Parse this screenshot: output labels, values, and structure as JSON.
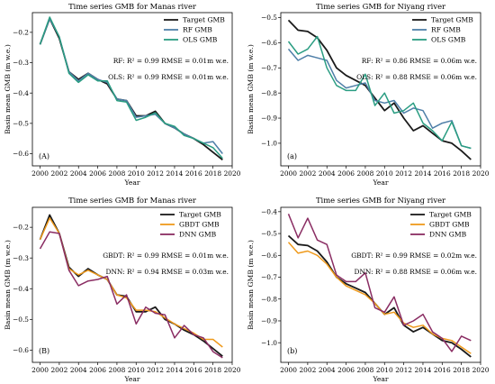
{
  "chart_data": [
    {
      "type": "line",
      "title": "Time series GMB for Manas river",
      "panel_label": "(A)",
      "xlabel": "Year",
      "ylabel": "Basin mean GMB (m w.e.)",
      "xlim": [
        1999.2,
        2020
      ],
      "ylim": [
        -0.64,
        -0.135
      ],
      "xticks": [
        "2000",
        "2002",
        "2004",
        "2006",
        "2008",
        "2010",
        "2012",
        "2014",
        "2016",
        "2018",
        "2020"
      ],
      "yticks": [
        "-0.6",
        "-0.5",
        "-0.4",
        "-0.3",
        "-0.2"
      ],
      "grid": false,
      "legend_position": "top-right",
      "x": [
        2000,
        2001,
        2002,
        2003,
        2004,
        2005,
        2006,
        2007,
        2008,
        2009,
        2010,
        2011,
        2012,
        2013,
        2014,
        2015,
        2016,
        2017,
        2018,
        2019
      ],
      "series": [
        {
          "name": "Target GMB",
          "color": "#1a1a1a",
          "values": [
            -0.24,
            -0.155,
            -0.22,
            -0.33,
            -0.355,
            -0.335,
            -0.355,
            -0.37,
            -0.42,
            -0.425,
            -0.475,
            -0.475,
            -0.46,
            -0.5,
            -0.515,
            -0.535,
            -0.55,
            -0.57,
            -0.595,
            -0.62
          ]
        },
        {
          "name": "RF GMB",
          "color": "#4f7fa8",
          "values": [
            -0.24,
            -0.155,
            -0.215,
            -0.33,
            -0.36,
            -0.335,
            -0.355,
            -0.365,
            -0.42,
            -0.425,
            -0.48,
            -0.475,
            -0.47,
            -0.5,
            -0.515,
            -0.535,
            -0.55,
            -0.565,
            -0.56,
            -0.6
          ]
        },
        {
          "name": "OLS GMB",
          "color": "#2a9d82",
          "values": [
            -0.24,
            -0.15,
            -0.215,
            -0.335,
            -0.365,
            -0.34,
            -0.36,
            -0.36,
            -0.425,
            -0.43,
            -0.49,
            -0.48,
            -0.465,
            -0.5,
            -0.51,
            -0.54,
            -0.55,
            -0.565,
            -0.58,
            -0.615
          ]
        }
      ],
      "annotations": [
        "RF:  R² = 0.99 RMSE = 0.01m w.e.",
        "OLS:  R² = 0.99 RMSE = 0.01m w.e."
      ]
    },
    {
      "type": "line",
      "title": "Time series GMB for Niyang river",
      "panel_label": "(a)",
      "xlabel": "Year",
      "ylabel": "Basin mean GMB (m w.e.)",
      "xlim": [
        1999.2,
        2020
      ],
      "ylim": [
        -1.09,
        -0.48
      ],
      "xticks": [
        "2000",
        "2002",
        "2004",
        "2006",
        "2008",
        "2010",
        "2012",
        "2014",
        "2016",
        "2018",
        "2020"
      ],
      "yticks": [
        "-1.0",
        "-0.9",
        "-0.8",
        "-0.7",
        "-0.6",
        "-0.5"
      ],
      "grid": false,
      "legend_position": "top-right",
      "x": [
        2000,
        2001,
        2002,
        2003,
        2004,
        2005,
        2006,
        2007,
        2008,
        2009,
        2010,
        2011,
        2012,
        2013,
        2014,
        2015,
        2016,
        2017,
        2018,
        2019
      ],
      "series": [
        {
          "name": "Target GMB",
          "color": "#1a1a1a",
          "values": [
            -0.51,
            -0.55,
            -0.555,
            -0.58,
            -0.63,
            -0.7,
            -0.73,
            -0.75,
            -0.77,
            -0.82,
            -0.87,
            -0.84,
            -0.9,
            -0.95,
            -0.93,
            -0.96,
            -0.99,
            -1.0,
            -1.03,
            -1.065
          ]
        },
        {
          "name": "RF GMB",
          "color": "#4f7fa8",
          "values": [
            -0.625,
            -0.67,
            -0.65,
            -0.66,
            -0.67,
            -0.75,
            -0.78,
            -0.77,
            -0.76,
            -0.83,
            -0.84,
            -0.83,
            -0.88,
            -0.86,
            -0.87,
            -0.94,
            -0.92,
            -0.91,
            -1.01,
            -1.02
          ]
        },
        {
          "name": "OLS GMB",
          "color": "#2a9d82",
          "values": [
            -0.595,
            -0.645,
            -0.625,
            -0.575,
            -0.7,
            -0.77,
            -0.79,
            -0.79,
            -0.725,
            -0.85,
            -0.8,
            -0.88,
            -0.87,
            -0.84,
            -0.92,
            -0.95,
            -0.99,
            -0.915,
            -1.01,
            -1.02
          ]
        }
      ],
      "annotations": [
        "RF:  R² = 0.86 RMSE = 0.06m w.e.",
        "OLS:  R² = 0.88 RMSE = 0.06m w.e."
      ]
    },
    {
      "type": "line",
      "title": "Time series GMB for Manas river",
      "panel_label": "(B)",
      "xlabel": "Year",
      "ylabel": "Basin mean GMB (m w.e.)",
      "xlim": [
        1999.2,
        2020
      ],
      "ylim": [
        -0.64,
        -0.135
      ],
      "xticks": [
        "2000",
        "2002",
        "2004",
        "2006",
        "2008",
        "2010",
        "2012",
        "2014",
        "2016",
        "2018",
        "2020"
      ],
      "yticks": [
        "-0.6",
        "-0.5",
        "-0.4",
        "-0.3",
        "-0.2"
      ],
      "grid": false,
      "legend_position": "top-right",
      "x": [
        2000,
        2001,
        2002,
        2003,
        2004,
        2005,
        2006,
        2007,
        2008,
        2009,
        2010,
        2011,
        2012,
        2013,
        2014,
        2015,
        2016,
        2017,
        2018,
        2019
      ],
      "series": [
        {
          "name": "Target GMB",
          "color": "#1a1a1a",
          "values": [
            -0.24,
            -0.16,
            -0.22,
            -0.33,
            -0.36,
            -0.335,
            -0.355,
            -0.37,
            -0.42,
            -0.425,
            -0.475,
            -0.475,
            -0.46,
            -0.5,
            -0.515,
            -0.535,
            -0.55,
            -0.57,
            -0.595,
            -0.62
          ]
        },
        {
          "name": "GBDT GMB",
          "color": "#ef9a1c",
          "values": [
            -0.24,
            -0.17,
            -0.22,
            -0.335,
            -0.355,
            -0.34,
            -0.355,
            -0.37,
            -0.42,
            -0.43,
            -0.47,
            -0.47,
            -0.475,
            -0.495,
            -0.515,
            -0.53,
            -0.545,
            -0.565,
            -0.565,
            -0.59
          ]
        },
        {
          "name": "DNN GMB",
          "color": "#8a2d63",
          "values": [
            -0.27,
            -0.215,
            -0.22,
            -0.34,
            -0.39,
            -0.375,
            -0.37,
            -0.36,
            -0.45,
            -0.42,
            -0.515,
            -0.46,
            -0.48,
            -0.485,
            -0.56,
            -0.52,
            -0.55,
            -0.56,
            -0.605,
            -0.625
          ]
        }
      ],
      "annotations": [
        "GBDT:  R² = 0.99 RMSE = 0.01m w.e.",
        "DNN:  R² = 0.94 RMSE = 0.03m w.e."
      ]
    },
    {
      "type": "line",
      "title": "Time series GMB for Niyang river",
      "panel_label": "(b)",
      "xlabel": "Year",
      "ylabel": "Basin mean GMB (m w.e.)",
      "xlim": [
        1999.2,
        2020
      ],
      "ylim": [
        -1.09,
        -0.38
      ],
      "xticks": [
        "2000",
        "2002",
        "2004",
        "2006",
        "2008",
        "2010",
        "2012",
        "2014",
        "2016",
        "2018",
        "2020"
      ],
      "yticks": [
        "-1.0",
        "-0.9",
        "-0.8",
        "-0.7",
        "-0.6",
        "-0.5",
        "-0.4"
      ],
      "grid": false,
      "legend_position": "top-right",
      "x": [
        2000,
        2001,
        2002,
        2003,
        2004,
        2005,
        2006,
        2007,
        2008,
        2009,
        2010,
        2011,
        2012,
        2013,
        2014,
        2015,
        2016,
        2017,
        2018,
        2019
      ],
      "series": [
        {
          "name": "Target GMB",
          "color": "#1a1a1a",
          "values": [
            -0.51,
            -0.55,
            -0.555,
            -0.58,
            -0.63,
            -0.7,
            -0.73,
            -0.75,
            -0.77,
            -0.82,
            -0.87,
            -0.84,
            -0.92,
            -0.95,
            -0.93,
            -0.96,
            -0.99,
            -1.0,
            -1.03,
            -1.065
          ]
        },
        {
          "name": "GBDT GMB",
          "color": "#ef9a1c",
          "values": [
            -0.54,
            -0.59,
            -0.58,
            -0.6,
            -0.64,
            -0.7,
            -0.74,
            -0.76,
            -0.78,
            -0.82,
            -0.87,
            -0.86,
            -0.91,
            -0.93,
            -0.92,
            -0.96,
            -0.98,
            -0.99,
            -1.02,
            -1.05
          ]
        },
        {
          "name": "DNN GMB",
          "color": "#8a2d63",
          "values": [
            -0.41,
            -0.52,
            -0.43,
            -0.53,
            -0.55,
            -0.69,
            -0.72,
            -0.72,
            -0.68,
            -0.84,
            -0.86,
            -0.79,
            -0.92,
            -0.9,
            -0.87,
            -0.95,
            -0.98,
            -1.04,
            -0.97,
            -0.99
          ]
        }
      ],
      "annotations": [
        "GBDT:  R² = 0.99 RMSE = 0.02m w.e.",
        "DNN:  R² = 0.88 RMSE = 0.06m w.e."
      ]
    }
  ]
}
